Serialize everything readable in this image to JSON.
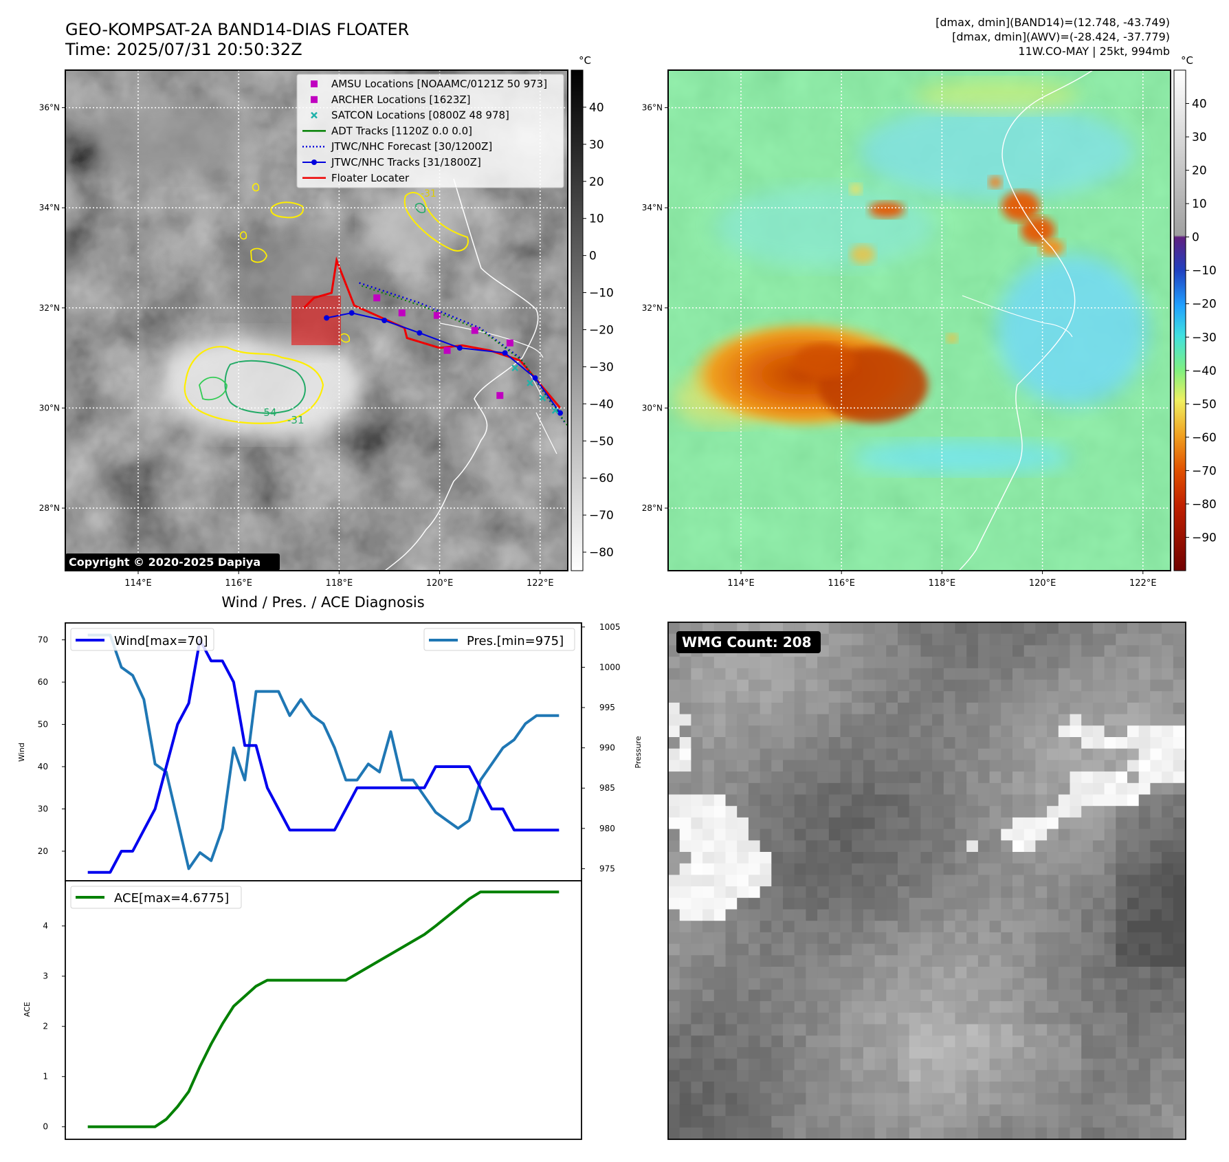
{
  "header": {
    "title": "GEO-KOMPSAT-2A BAND14-DIAS FLOATER",
    "time": "Time: 2025/07/31 20:50:32Z",
    "info1": "[dmax, dmin](BAND14)=(12.748, -43.749)",
    "info2": "[dmax, dmin](AWV)=(-28.424, -37.779)",
    "info3": "11W.CO-MAY | 25kt, 994mb"
  },
  "copyright": "Copyright © 2020-2025 Dapiya",
  "map": {
    "lat_labels": [
      "36°N",
      "34°N",
      "32°N",
      "30°N",
      "28°N"
    ],
    "lat_values": [
      36,
      34,
      32,
      30,
      28
    ],
    "lon_labels": [
      "114°E",
      "116°E",
      "118°E",
      "120°E",
      "122°E"
    ],
    "lon_values": [
      114,
      116,
      118,
      120,
      122
    ],
    "lon_range": [
      112.55,
      122.55
    ],
    "lat_range": [
      26.75,
      36.75
    ],
    "legend": [
      {
        "label": "AMSU Locations [NOAAMC/0121Z 50 973]",
        "color": "#c000c0",
        "marker": "square"
      },
      {
        "label": "ARCHER Locations [1623Z]",
        "color": "#c000c0",
        "marker": "square"
      },
      {
        "label": "SATCON Locations [0800Z 48 978]",
        "color": "#20b2aa",
        "marker": "x"
      },
      {
        "label": "ADT Tracks [1120Z 0.0 0.0]",
        "color": "#008000",
        "marker": "line"
      },
      {
        "label": "JTWC/NHC Forecast [30/1200Z]",
        "color": "#0000dd",
        "marker": "dotted"
      },
      {
        "label": "JTWC/NHC Tracks [31/1800Z]",
        "color": "#0000dd",
        "marker": "line-dot"
      },
      {
        "label": "Floater Locater",
        "color": "#ee0000",
        "marker": "line"
      }
    ],
    "jtwc_track": [
      [
        117.75,
        31.8
      ],
      [
        118.25,
        31.9
      ],
      [
        118.9,
        31.75
      ],
      [
        119.6,
        31.5
      ],
      [
        120.4,
        31.2
      ],
      [
        121.3,
        31.1
      ],
      [
        121.9,
        30.6
      ],
      [
        122.4,
        29.9
      ]
    ],
    "jtwc_forecast": [
      [
        118.4,
        32.5
      ],
      [
        119.6,
        32.1
      ],
      [
        120.8,
        31.6
      ],
      [
        121.6,
        31.0
      ],
      [
        122.5,
        29.7
      ]
    ],
    "floater_track": [
      [
        117.3,
        32.0
      ],
      [
        117.5,
        32.2
      ],
      [
        117.85,
        32.3
      ],
      [
        117.95,
        32.95
      ],
      [
        118.3,
        32.05
      ],
      [
        119.3,
        31.6
      ],
      [
        119.35,
        31.4
      ],
      [
        120.0,
        31.2
      ],
      [
        120.45,
        31.25
      ],
      [
        121.0,
        31.15
      ],
      [
        121.6,
        30.95
      ],
      [
        122.4,
        30.0
      ]
    ],
    "amsu_points": [
      [
        118.75,
        32.2
      ],
      [
        119.25,
        31.9
      ],
      [
        119.95,
        31.85
      ],
      [
        120.15,
        31.15
      ],
      [
        120.7,
        31.55
      ],
      [
        121.4,
        31.3
      ],
      [
        121.2,
        30.25
      ]
    ],
    "satcon_points": [
      [
        121.5,
        30.8
      ],
      [
        121.8,
        30.5
      ],
      [
        122.05,
        30.2
      ],
      [
        122.3,
        29.95
      ]
    ],
    "contour_labels": [
      "-54",
      "-31",
      "-31"
    ]
  },
  "colorbar1": {
    "unit": "°C",
    "ticks": [
      40,
      30,
      20,
      10,
      0,
      -10,
      -20,
      -30,
      -40,
      -50,
      -60,
      -70,
      -80
    ],
    "tick_labels": [
      "40",
      "30",
      "20",
      "10",
      "0",
      "−10",
      "−20",
      "−30",
      "−40",
      "−50",
      "−60",
      "−70",
      "−80"
    ],
    "range": [
      -85,
      50
    ]
  },
  "colorbar2": {
    "unit": "°C",
    "ticks": [
      40,
      30,
      20,
      10,
      0,
      -10,
      -20,
      -30,
      -40,
      -50,
      -60,
      -70,
      -80,
      -90
    ],
    "tick_labels": [
      "40",
      "30",
      "20",
      "10",
      "0",
      "−10",
      "−20",
      "−30",
      "−40",
      "−50",
      "−60",
      "−70",
      "−80",
      "−90"
    ],
    "range": [
      -100,
      50
    ]
  },
  "diag": {
    "title": "Wind / Pres. / ACE Diagnosis",
    "wind_ylabel": "Wind",
    "pres_ylabel": "Pressure",
    "ace_ylabel": "ACE",
    "wind_legend": "Wind[max=70]",
    "pres_legend": "Pres.[min=975]",
    "ace_legend": "ACE[max=4.6775]",
    "wind_ticks": [
      20,
      30,
      40,
      50,
      60,
      70
    ],
    "pres_ticks": [
      975,
      980,
      985,
      990,
      995,
      1000,
      1005
    ],
    "ace_ticks": [
      0,
      1,
      2,
      3,
      4
    ],
    "wind_color": "#0000ee",
    "pres_color": "#1f77b4",
    "ace_color": "#008000"
  },
  "chart_data": [
    {
      "type": "line",
      "name": "wind",
      "ylabel": "Wind",
      "ylim": [
        13,
        74
      ],
      "x": [
        0,
        1,
        2,
        3,
        4,
        5,
        6,
        7,
        8,
        9,
        10,
        11,
        12,
        13,
        14,
        15,
        16,
        17,
        18,
        19,
        20,
        21,
        22,
        23,
        24,
        25,
        26,
        27,
        28,
        29,
        30,
        31,
        32,
        33,
        34,
        35,
        36,
        37,
        38,
        39,
        40,
        41,
        42
      ],
      "series": [
        {
          "name": "Wind[max=70]",
          "values": [
            15,
            15,
            15,
            20,
            20,
            25,
            30,
            40,
            50,
            55,
            70,
            65,
            65,
            60,
            45,
            45,
            35,
            30,
            25,
            25,
            25,
            25,
            25,
            30,
            35,
            35,
            35,
            35,
            35,
            35,
            35,
            40,
            40,
            40,
            40,
            35,
            30,
            30,
            25,
            25,
            25,
            25,
            25
          ]
        }
      ]
    },
    {
      "type": "line",
      "name": "pressure",
      "ylabel": "Pressure",
      "ylim": [
        973.5,
        1005.5
      ],
      "x": [
        0,
        1,
        2,
        3,
        4,
        5,
        6,
        7,
        8,
        9,
        10,
        11,
        12,
        13,
        14,
        15,
        16,
        17,
        18,
        19,
        20,
        21,
        22,
        23,
        24,
        25,
        26,
        27,
        28,
        29,
        30,
        31,
        32,
        33,
        34,
        35,
        36,
        37,
        38,
        39,
        40,
        41,
        42
      ],
      "series": [
        {
          "name": "Pres.[min=975]",
          "values": [
            1004,
            1004,
            1004,
            1000,
            999,
            996,
            988,
            987,
            981,
            975,
            977,
            976,
            980,
            990,
            986,
            997,
            997,
            997,
            994,
            996,
            994,
            993,
            990,
            986,
            986,
            988,
            987,
            992,
            986,
            986,
            984,
            982,
            981,
            980,
            981,
            986,
            988,
            990,
            991,
            993,
            994,
            994,
            994
          ]
        }
      ]
    },
    {
      "type": "line",
      "name": "ace",
      "ylabel": "ACE",
      "ylim": [
        -0.25,
        4.9
      ],
      "x": [
        0,
        1,
        2,
        3,
        4,
        5,
        6,
        7,
        8,
        9,
        10,
        11,
        12,
        13,
        14,
        15,
        16,
        17,
        18,
        19,
        20,
        21,
        22,
        23,
        24,
        25,
        26,
        27,
        28,
        29,
        30,
        31,
        32,
        33,
        34,
        35,
        36,
        37,
        38,
        39,
        40,
        41,
        42
      ],
      "series": [
        {
          "name": "ACE[max=4.6775]",
          "values": [
            0,
            0,
            0,
            0,
            0,
            0,
            0,
            0.15,
            0.4,
            0.7,
            1.2,
            1.65,
            2.05,
            2.4,
            2.6,
            2.8,
            2.92,
            2.92,
            2.92,
            2.92,
            2.92,
            2.92,
            2.92,
            2.92,
            3.05,
            3.18,
            3.31,
            3.44,
            3.57,
            3.7,
            3.83,
            4.0,
            4.18,
            4.36,
            4.54,
            4.6775,
            4.6775,
            4.6775,
            4.6775,
            4.6775,
            4.6775,
            4.6775,
            4.6775
          ]
        }
      ]
    }
  ],
  "wmg": {
    "label": "WMG Count: 208"
  }
}
